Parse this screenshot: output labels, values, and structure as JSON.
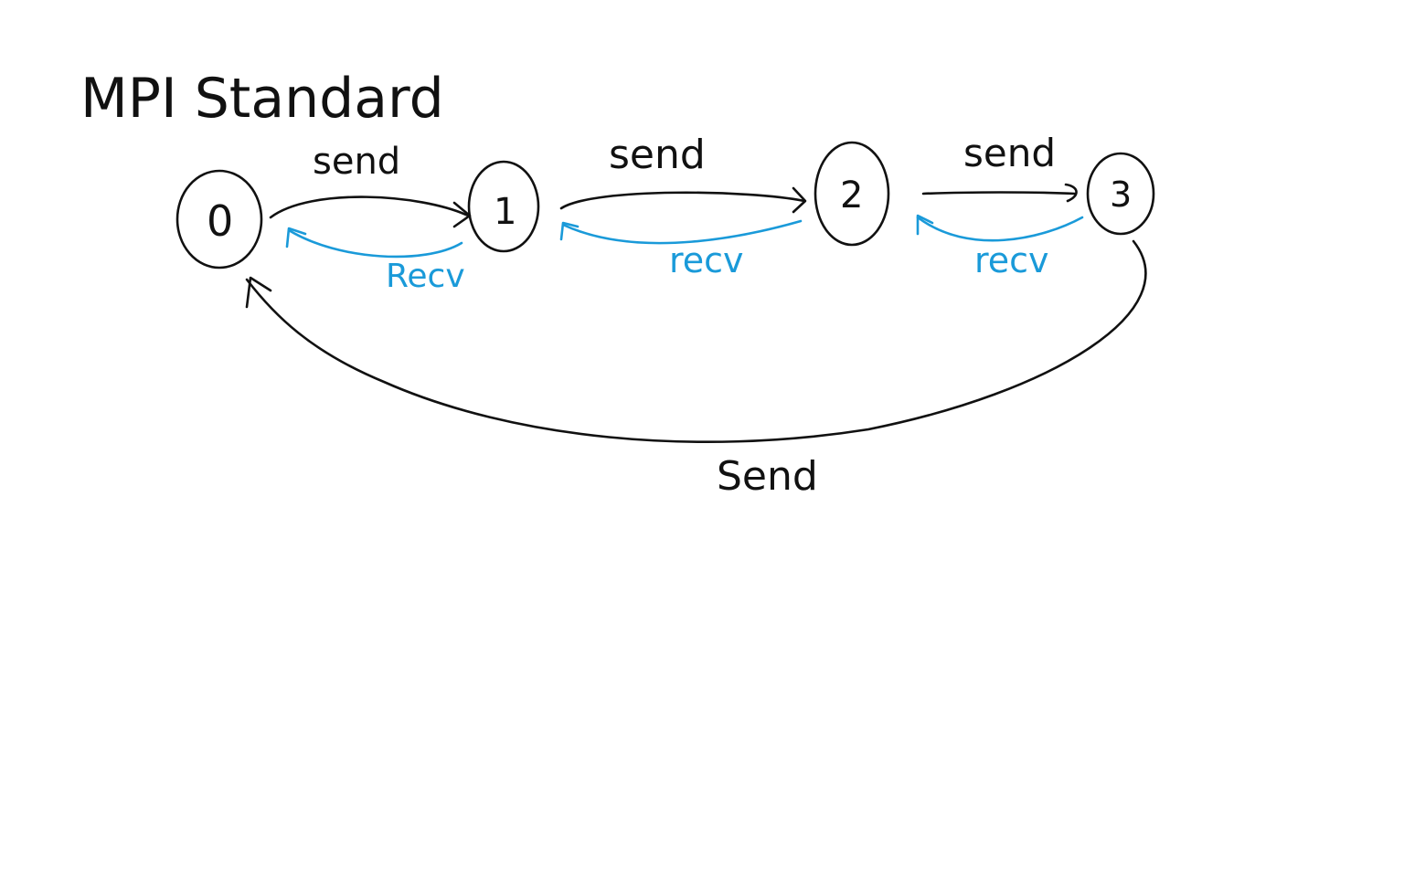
{
  "title": "MPI Standard",
  "colors": {
    "send": "#111111",
    "recv": "#1a9ad9"
  },
  "nodes": [
    {
      "id": "0",
      "label": "0"
    },
    {
      "id": "1",
      "label": "1"
    },
    {
      "id": "2",
      "label": "2"
    },
    {
      "id": "3",
      "label": "3"
    }
  ],
  "edges": [
    {
      "from": "0",
      "to": "1",
      "kind": "send",
      "label": "send"
    },
    {
      "from": "1",
      "to": "0",
      "kind": "recv",
      "label": "Recv"
    },
    {
      "from": "1",
      "to": "2",
      "kind": "send",
      "label": "send"
    },
    {
      "from": "2",
      "to": "1",
      "kind": "recv",
      "label": "recv"
    },
    {
      "from": "2",
      "to": "3",
      "kind": "send",
      "label": "send"
    },
    {
      "from": "3",
      "to": "2",
      "kind": "recv",
      "label": "recv"
    },
    {
      "from": "3",
      "to": "0",
      "kind": "send",
      "label": "Send"
    }
  ]
}
